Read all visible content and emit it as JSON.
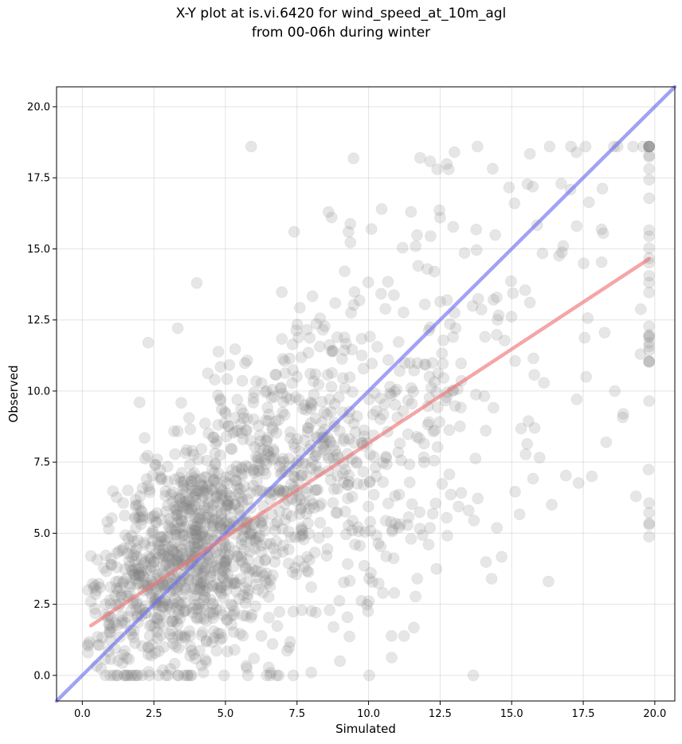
{
  "chart_data": {
    "type": "scatter",
    "title_line1": "X-Y plot at is.vi.6420 for wind_speed_at_10m_agl",
    "title_line2": "from 00-06h during winter",
    "xlabel": "Simulated",
    "ylabel": "Observed",
    "xlim": [
      -0.9,
      20.7
    ],
    "ylim": [
      -0.9,
      20.7
    ],
    "xticks": [
      "0.0",
      "2.5",
      "5.0",
      "7.5",
      "10.0",
      "12.5",
      "15.0",
      "17.5",
      "20.0"
    ],
    "yticks": [
      "0.0",
      "2.5",
      "5.0",
      "7.5",
      "10.0",
      "12.5",
      "15.0",
      "17.5",
      "20.0"
    ],
    "grid": true,
    "marker_color": "#808080",
    "marker_alpha": 0.2,
    "point_count": 1600,
    "highlighted_points": [
      {
        "x": 5.9,
        "y": 18.6
      },
      {
        "x": 13.0,
        "y": 18.4
      },
      {
        "x": 11.8,
        "y": 18.2
      },
      {
        "x": 12.4,
        "y": 17.8
      },
      {
        "x": 12.8,
        "y": 17.8
      },
      {
        "x": 15.1,
        "y": 16.6
      },
      {
        "x": 8.6,
        "y": 16.3
      },
      {
        "x": 12.5,
        "y": 16.1
      },
      {
        "x": 10.1,
        "y": 15.7
      },
      {
        "x": 9.3,
        "y": 15.6
      },
      {
        "x": 7.4,
        "y": 15.6
      },
      {
        "x": 16.8,
        "y": 15.1
      },
      {
        "x": 4.0,
        "y": 13.8
      },
      {
        "x": 2.3,
        "y": 11.7
      },
      {
        "x": 2.0,
        "y": 9.6
      },
      {
        "x": 14.3,
        "y": 3.4
      },
      {
        "x": 16.4,
        "y": 6.0
      },
      {
        "x": 19.8,
        "y": 5.3
      },
      {
        "x": 19.5,
        "y": 11.3
      },
      {
        "x": 18.6,
        "y": 10.0
      },
      {
        "x": 18.9,
        "y": 9.2
      },
      {
        "x": 17.8,
        "y": 7.0
      },
      {
        "x": 18.3,
        "y": 8.2
      },
      {
        "x": 17.6,
        "y": 10.5
      },
      {
        "x": 0.3,
        "y": 4.2
      },
      {
        "x": 0.3,
        "y": 2.6
      },
      {
        "x": 0.2,
        "y": 0.8
      },
      {
        "x": 3.0,
        "y": 0.0
      },
      {
        "x": 8.0,
        "y": 0.1
      },
      {
        "x": 10.5,
        "y": 2.9
      },
      {
        "x": 10.9,
        "y": 2.9
      },
      {
        "x": 12.1,
        "y": 4.6
      },
      {
        "x": 11.7,
        "y": 3.4
      },
      {
        "x": 13.5,
        "y": 5.8
      },
      {
        "x": 9.0,
        "y": 0.5
      },
      {
        "x": 6.0,
        "y": 0.6
      }
    ],
    "lines": [
      {
        "role": "one-to-one",
        "color": "#7070ee",
        "x": [
          -0.9,
          20.7
        ],
        "y": [
          -0.9,
          20.7
        ]
      },
      {
        "role": "regression",
        "color": "#ee7777",
        "x": [
          0.3,
          19.8
        ],
        "y": [
          1.75,
          14.65
        ]
      }
    ]
  }
}
